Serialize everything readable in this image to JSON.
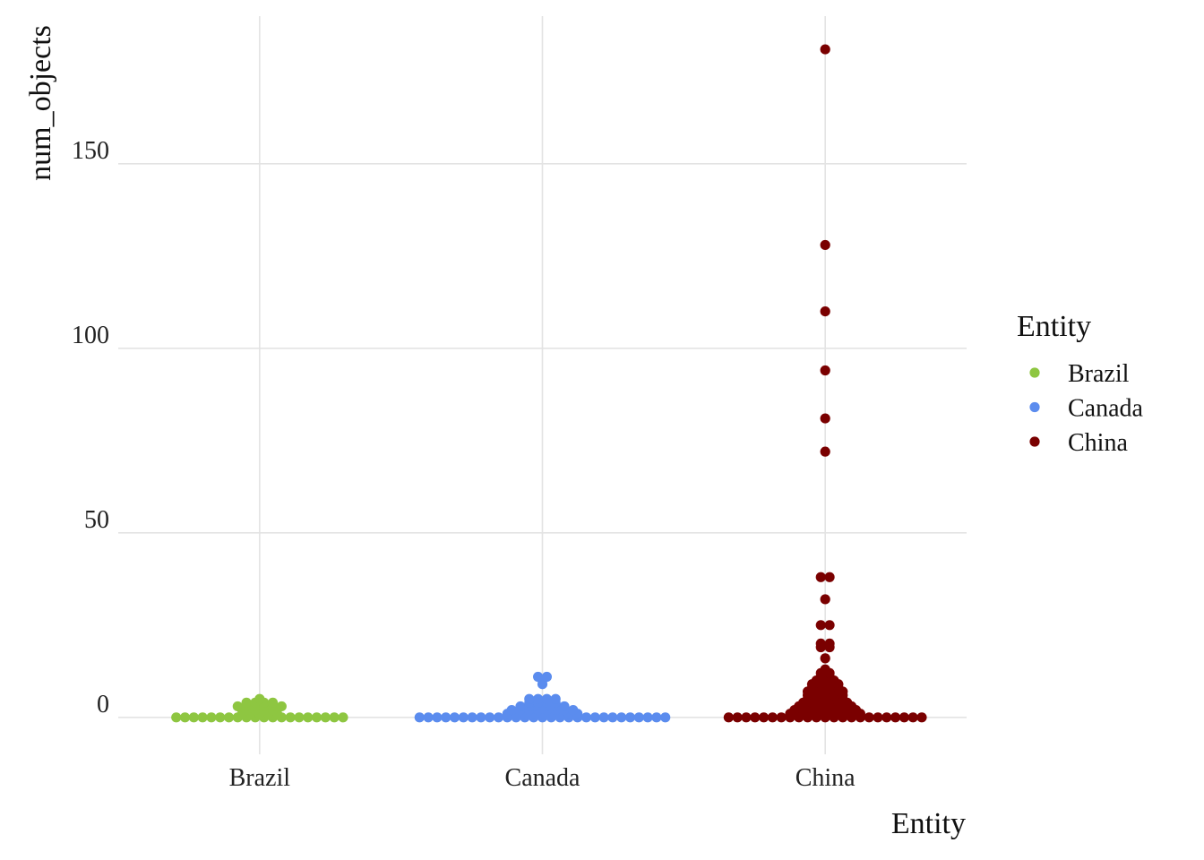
{
  "chart_data": {
    "type": "scatter",
    "subtype": "beeswarm",
    "xlabel": "Entity",
    "ylabel": "num_objects",
    "categories": [
      "Brazil",
      "Canada",
      "China"
    ],
    "ylim": [
      -10,
      190
    ],
    "yticks": [
      0,
      50,
      100,
      150
    ],
    "grid": true,
    "legend": {
      "title": "Entity",
      "position": "right",
      "entries": [
        "Brazil",
        "Canada",
        "China"
      ]
    },
    "series": [
      {
        "name": "Brazil",
        "color": "#8ec641",
        "values": [
          0,
          0,
          0,
          0,
          0,
          0,
          0,
          0,
          0,
          0,
          0,
          0,
          0,
          0,
          0,
          0,
          0,
          0,
          0,
          0,
          1,
          1,
          1,
          1,
          1,
          2,
          2,
          2,
          2,
          3,
          3,
          3,
          3,
          3,
          3,
          4,
          4,
          4,
          4,
          5
        ]
      },
      {
        "name": "Canada",
        "color": "#5b8cee",
        "values": [
          0,
          0,
          0,
          0,
          0,
          0,
          0,
          0,
          0,
          0,
          0,
          0,
          0,
          0,
          0,
          0,
          0,
          0,
          0,
          0,
          0,
          0,
          0,
          0,
          0,
          0,
          0,
          0,
          0,
          1,
          1,
          1,
          1,
          1,
          1,
          1,
          1,
          1,
          2,
          2,
          2,
          2,
          2,
          2,
          2,
          2,
          3,
          3,
          3,
          3,
          3,
          3,
          4,
          4,
          4,
          4,
          5,
          5,
          5,
          5,
          9,
          10,
          11,
          11
        ]
      },
      {
        "name": "China",
        "color": "#7a0000",
        "values": [
          0,
          0,
          0,
          0,
          0,
          0,
          0,
          0,
          0,
          0,
          0,
          0,
          0,
          0,
          0,
          0,
          0,
          0,
          0,
          0,
          0,
          0,
          0,
          1,
          1,
          1,
          1,
          1,
          1,
          1,
          1,
          1,
          2,
          2,
          2,
          2,
          2,
          2,
          2,
          2,
          3,
          3,
          3,
          3,
          3,
          3,
          3,
          4,
          4,
          4,
          4,
          4,
          4,
          5,
          5,
          5,
          5,
          5,
          6,
          6,
          6,
          6,
          6,
          7,
          7,
          7,
          7,
          7,
          8,
          8,
          8,
          8,
          9,
          9,
          9,
          9,
          10,
          10,
          10,
          11,
          11,
          12,
          12,
          13,
          16,
          19,
          19,
          20,
          20,
          25,
          25,
          32,
          38,
          38,
          72,
          81,
          94,
          110,
          128,
          181
        ]
      }
    ]
  }
}
